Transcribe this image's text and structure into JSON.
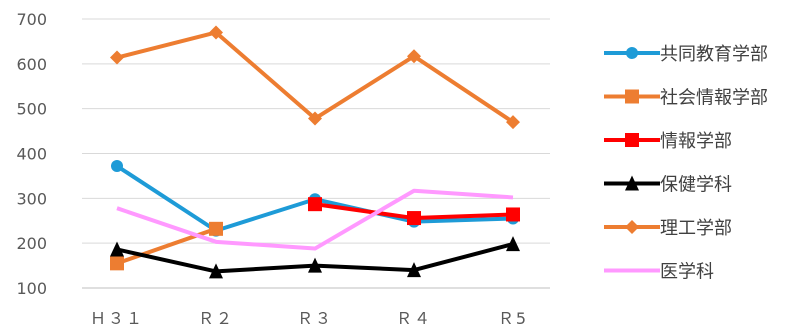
{
  "chart_data": {
    "type": "line",
    "categories": [
      "Ｈ３１",
      "Ｒ２",
      "Ｒ３",
      "Ｒ４",
      "Ｒ5"
    ],
    "ylim": [
      100,
      700
    ],
    "yticks": [
      100,
      200,
      300,
      400,
      500,
      600,
      700
    ],
    "grid": "horizontal",
    "legend_position": "right",
    "series": [
      {
        "name": "共同教育学部",
        "color": "#1E9BD7",
        "marker": "circle",
        "values": [
          372,
          228,
          298,
          248,
          255
        ]
      },
      {
        "name": "社会情報学部",
        "color": "#ED7D31",
        "marker": "square",
        "values": [
          155,
          232,
          null,
          null,
          null
        ]
      },
      {
        "name": "情報学部",
        "color": "#FF0000",
        "marker": "square",
        "values": [
          null,
          null,
          287,
          256,
          264
        ]
      },
      {
        "name": "保健学科",
        "color": "#000000",
        "marker": "triangle",
        "values": [
          186,
          137,
          150,
          140,
          198
        ]
      },
      {
        "name": "理工学部",
        "color": "#ED7D31",
        "marker": "diamond",
        "values": [
          614,
          670,
          478,
          617,
          470
        ]
      },
      {
        "name": "医学科",
        "color": "#FF99FF",
        "marker": "none",
        "values": [
          278,
          203,
          188,
          317,
          302
        ]
      }
    ]
  }
}
